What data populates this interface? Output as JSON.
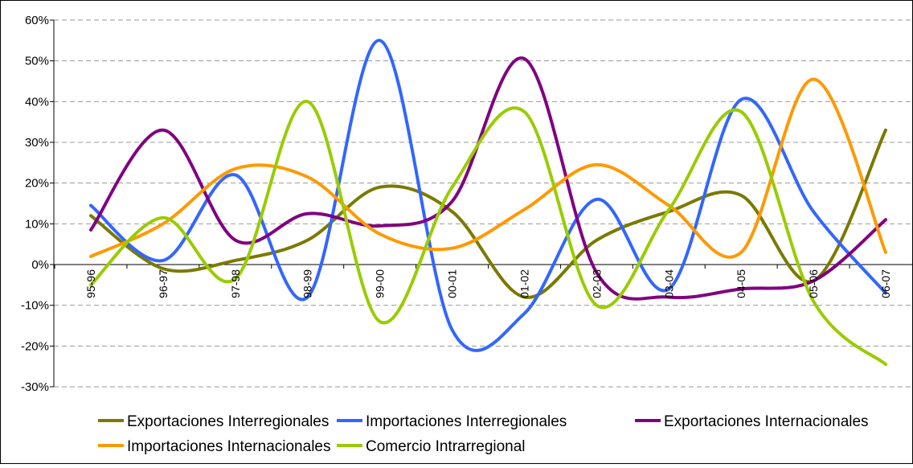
{
  "chart_data": {
    "type": "line",
    "title": "",
    "xlabel": "",
    "ylabel": "",
    "ylim": [
      -30,
      60
    ],
    "y_ticks": [
      "60%",
      "50%",
      "40%",
      "30%",
      "20%",
      "10%",
      "0%",
      "-10%",
      "-20%",
      "-30%"
    ],
    "y_tick_values": [
      60,
      50,
      40,
      30,
      20,
      10,
      0,
      -10,
      -20,
      -30
    ],
    "grid": "horizontal dashed",
    "legend_position": "bottom",
    "smooth": true,
    "categories": [
      "95-96",
      "96-97",
      "97-98",
      "98-99",
      "99-00",
      "00-01",
      "01-02",
      "02-03",
      "03-04",
      "04-05",
      "05-06",
      "06-07"
    ],
    "series": [
      {
        "name": "Exportaciones Interregionales",
        "color": "#7a7a00",
        "values": [
          12,
          -1,
          1,
          6,
          19,
          13,
          -8,
          6,
          13,
          17,
          -4,
          33
        ]
      },
      {
        "name": "Importaciones Interregionales",
        "color": "#3366ff",
        "values": [
          14.5,
          1,
          22,
          -8,
          55,
          -16,
          -12,
          16,
          -6,
          40.5,
          13,
          -7
        ]
      },
      {
        "name": "Exportaciones Internacionales",
        "color": "#800080",
        "values": [
          8.5,
          33,
          6,
          12.5,
          9.5,
          15.5,
          50.5,
          -2,
          -8,
          -6,
          -4,
          11
        ]
      },
      {
        "name": "Importaciones Internacionales",
        "color": "#ff9900",
        "values": [
          2,
          10,
          23.5,
          21.5,
          7.5,
          4,
          13.5,
          24.5,
          14.5,
          3,
          45.5,
          3
        ]
      },
      {
        "name": "Comercio Intrarregional",
        "color": "#99cc00",
        "values": [
          -5,
          11.5,
          -3.5,
          40,
          -14,
          19,
          37.5,
          -10,
          13.5,
          37.5,
          -9,
          -24.5
        ]
      }
    ]
  }
}
